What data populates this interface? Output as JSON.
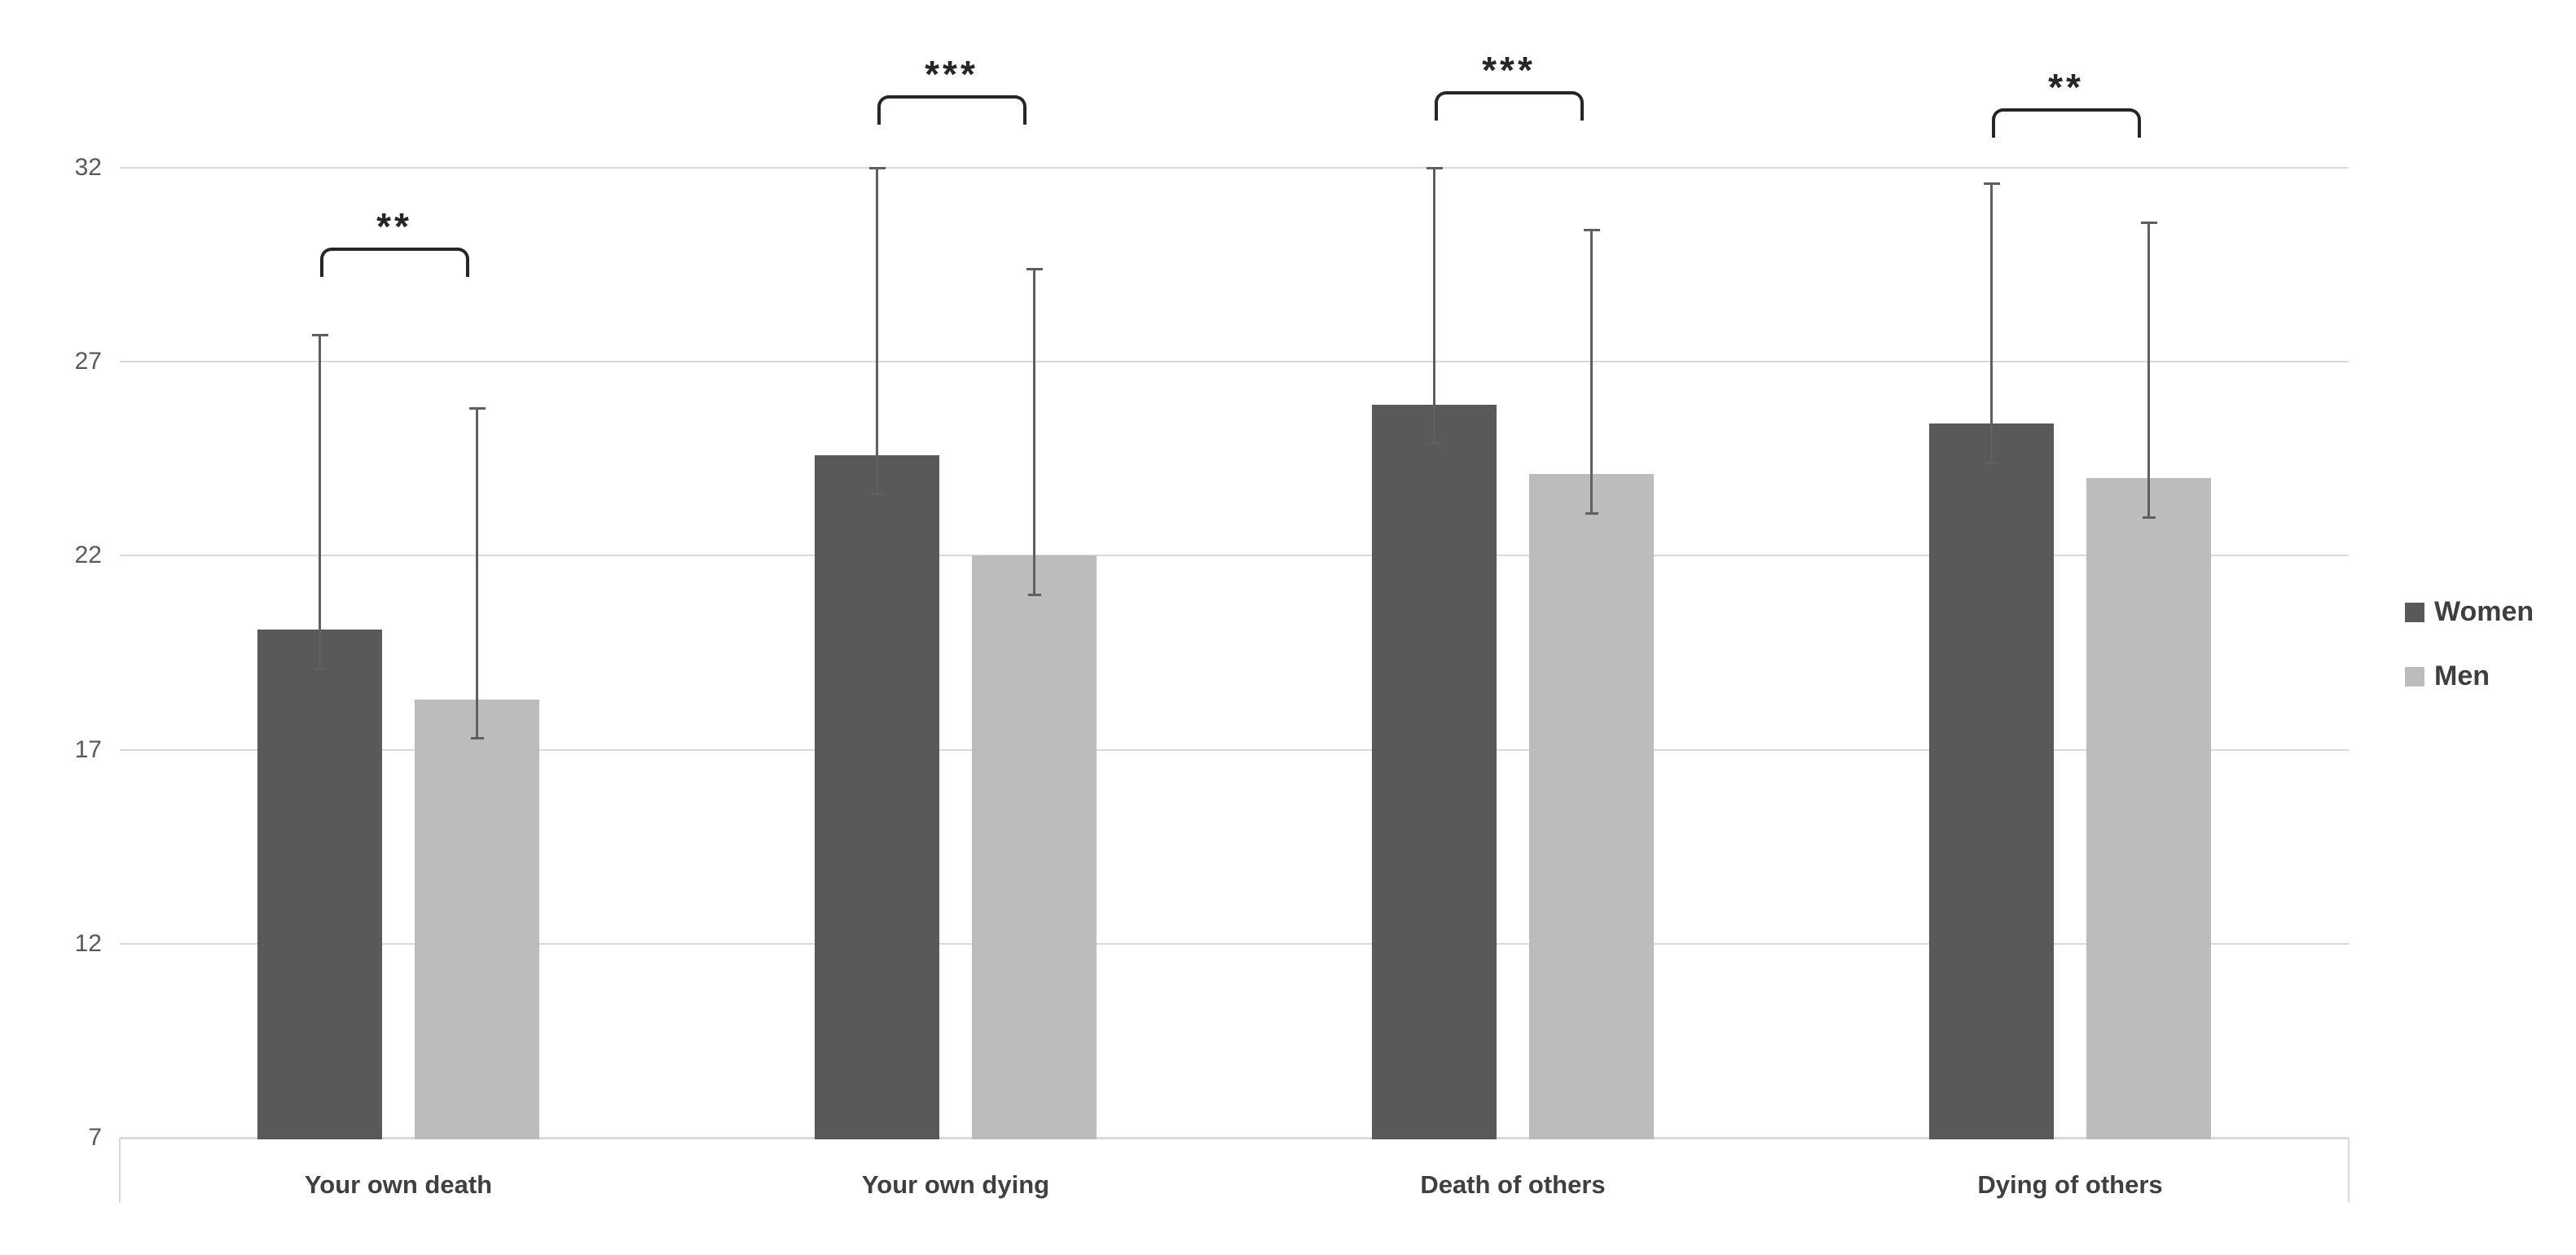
{
  "chart_data": {
    "type": "bar",
    "title": "",
    "xlabel": "",
    "ylabel": "",
    "categories": [
      "Your own death",
      "Your own dying",
      "Death of others",
      "Dying of others"
    ],
    "series": [
      {
        "name": "Women",
        "color": "#595959",
        "values": [
          20.1,
          24.6,
          25.9,
          25.4
        ],
        "error_plus": [
          7.6,
          7.4,
          6.1,
          6.2
        ],
        "error_minus": [
          1.0,
          1.0,
          1.0,
          1.0
        ]
      },
      {
        "name": "Men",
        "color": "#bcbcbc",
        "values": [
          18.3,
          22.0,
          24.1,
          24.0
        ],
        "error_plus": [
          7.5,
          7.4,
          6.3,
          6.6
        ],
        "error_minus": [
          1.0,
          1.0,
          1.0,
          1.0
        ]
      }
    ],
    "significance": [
      "**",
      "***",
      "***",
      "**"
    ],
    "ylim": [
      7,
      32
    ],
    "yticks": [
      32,
      27,
      22,
      17,
      12,
      7
    ],
    "grid": true,
    "legend_position": "right",
    "colors": {
      "gridline": "#d9d9d9",
      "axis_line": "#d9d9d9",
      "axis_text": "#595959",
      "category_text": "#3f3f3f",
      "error_bar": "#5f5f5f",
      "bracket": "#262626",
      "background": "#ffffff"
    }
  },
  "legend": {
    "items": [
      {
        "label": "Women",
        "color": "#595959"
      },
      {
        "label": "Men",
        "color": "#bcbcbc"
      }
    ]
  }
}
